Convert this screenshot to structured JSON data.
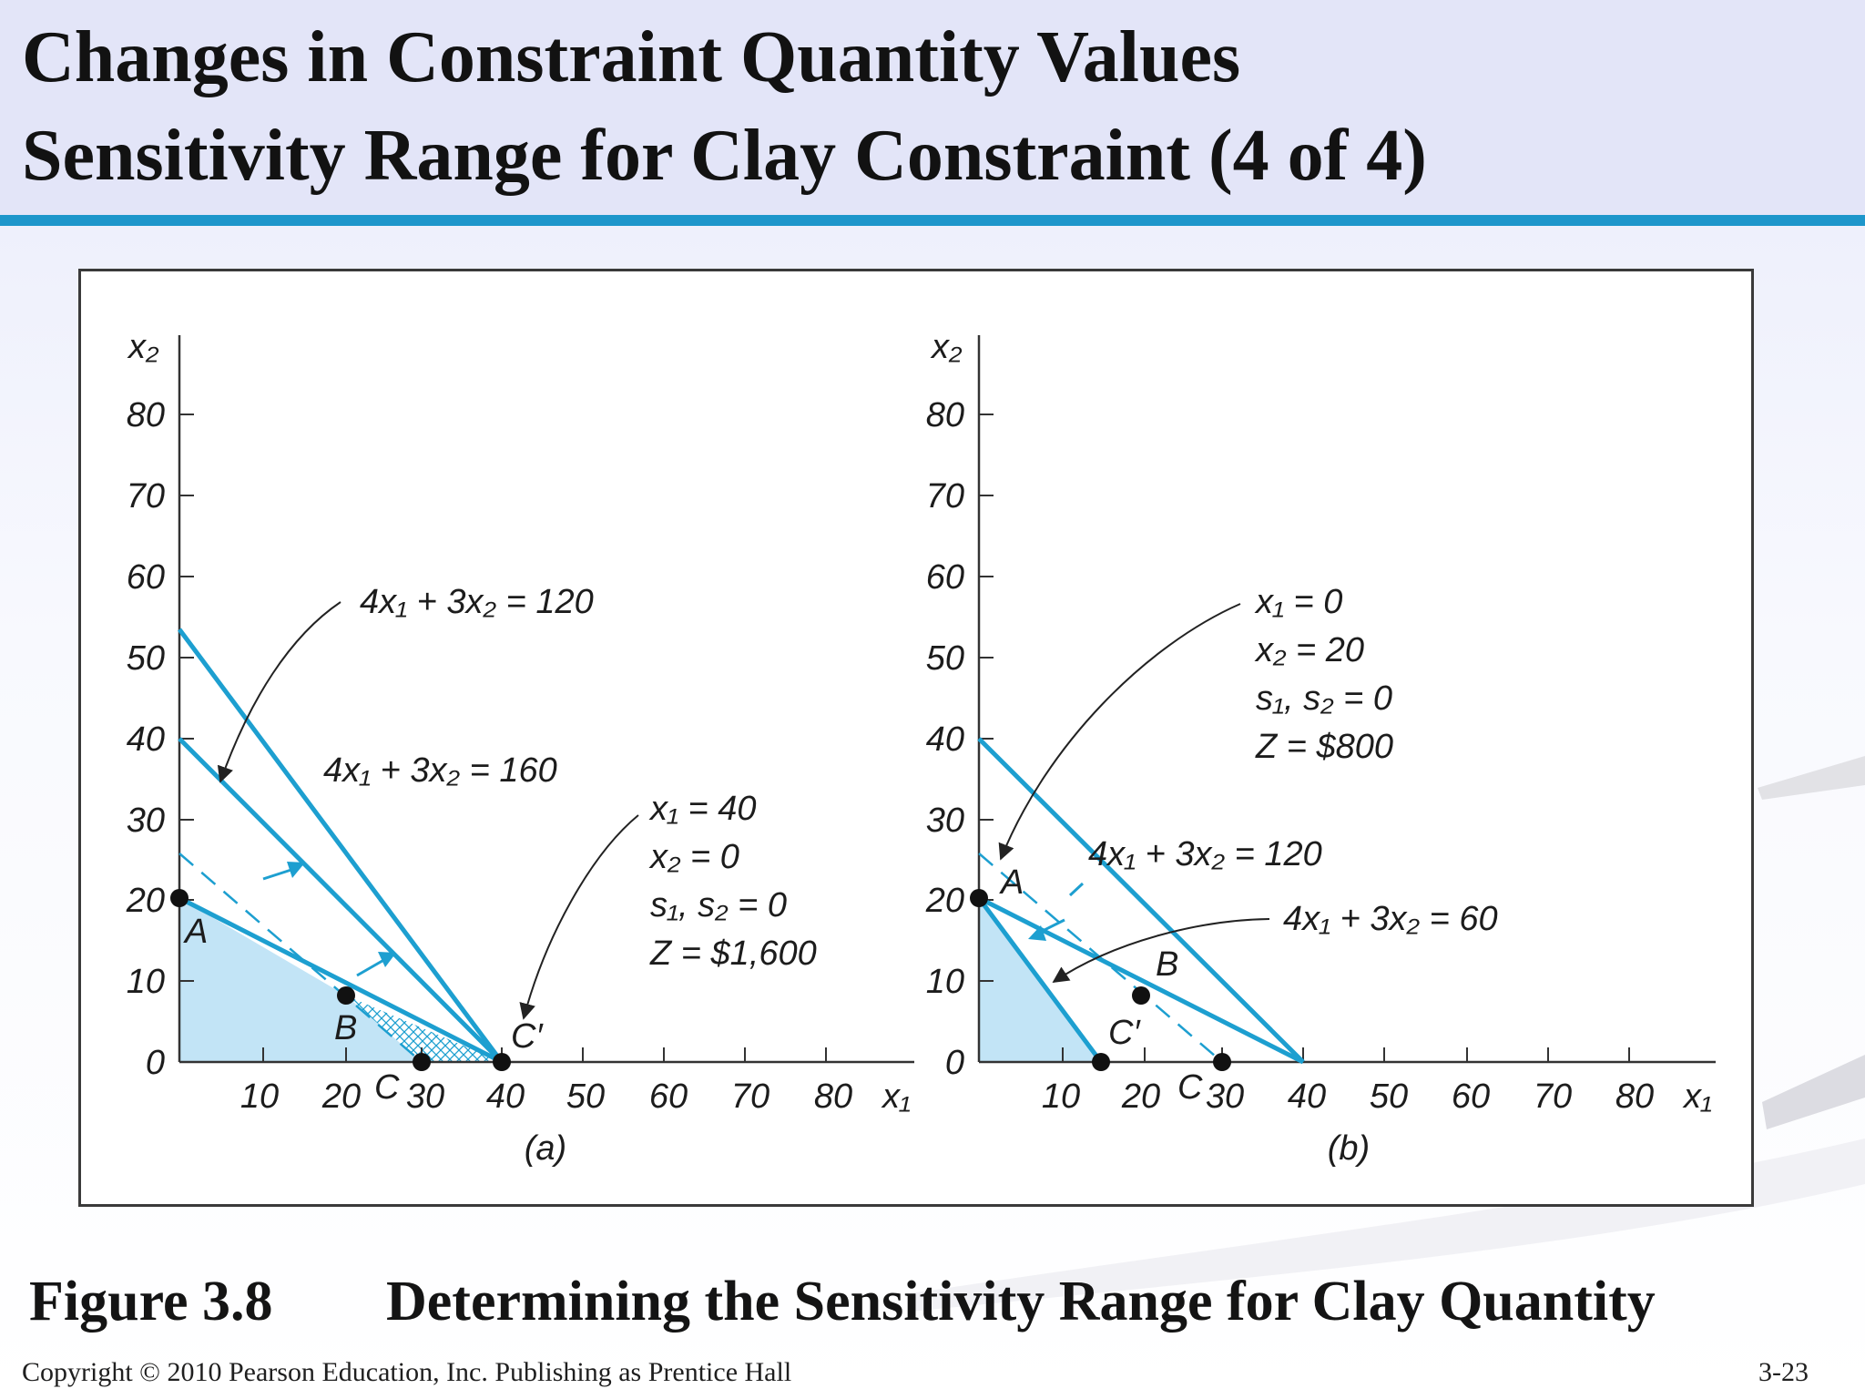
{
  "slide": {
    "title_line1": "Changes in Constraint Quantity Values",
    "title_line2": "Sensitivity Range for Clay Constraint (4 of 4)",
    "caption_number": "Figure 3.8",
    "caption_text": "Determining the Sensitivity Range for Clay Quantity",
    "copyright": "Copyright © 2010 Pearson Education, Inc. Publishing as Prentice Hall",
    "page_number": "3-23"
  },
  "colors": {
    "line": "#1d9fd0",
    "region": "#c2e4f6",
    "rule": "#1d96cb",
    "arrow": "#222222"
  },
  "panel_a": {
    "caption": "(a)",
    "y_axis_label": "x₂",
    "x_axis_label": "x₁",
    "y_ticks": [
      "80",
      "70",
      "60",
      "50",
      "40",
      "30",
      "20",
      "10",
      "0"
    ],
    "x_ticks": [
      "10",
      "20",
      "30",
      "40",
      "50",
      "60",
      "70",
      "80"
    ],
    "eq_120": "4x₁ + 3x₂ = 120",
    "eq_160": "4x₁ + 3x₂ = 160",
    "solution": [
      "x₁ = 40",
      "x₂ = 0",
      "s₁, s₂ = 0",
      "Z = $1,600"
    ],
    "points": {
      "A": "A",
      "B": "B",
      "C": "C",
      "C_prime": "C′"
    }
  },
  "panel_b": {
    "caption": "(b)",
    "y_axis_label": "x₂",
    "x_axis_label": "x₁",
    "y_ticks": [
      "80",
      "70",
      "60",
      "50",
      "40",
      "30",
      "20",
      "10",
      "0"
    ],
    "x_ticks": [
      "10",
      "20",
      "30",
      "40",
      "50",
      "60",
      "70",
      "80"
    ],
    "eq_120": "4x₁ + 3x₂ = 120",
    "eq_60": "4x₁ + 3x₂ = 60",
    "solution": [
      "x₁ = 0",
      "x₂ = 20",
      "s₁, s₂ = 0",
      "Z = $800"
    ],
    "points": {
      "A": "A",
      "B": "B",
      "C": "C",
      "C_prime": "C′"
    }
  }
}
